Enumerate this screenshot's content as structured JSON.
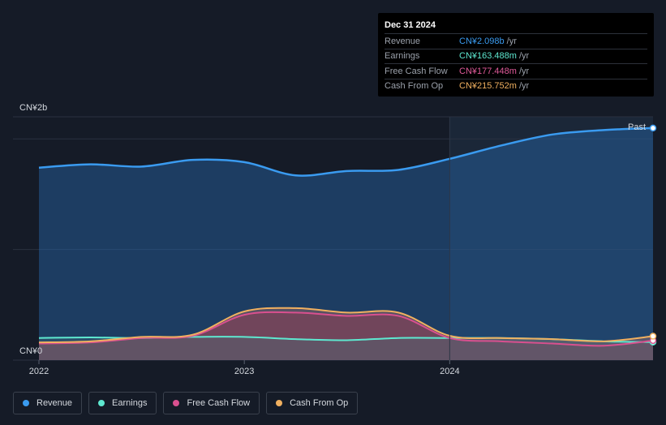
{
  "tooltip": {
    "date": "Dec 31 2024",
    "rows": [
      {
        "label": "Revenue",
        "value": "CN¥2.098b",
        "unit": "/yr",
        "color": "#3a9bf0"
      },
      {
        "label": "Earnings",
        "value": "CN¥163.488m",
        "unit": "/yr",
        "color": "#5ee8d0"
      },
      {
        "label": "Free Cash Flow",
        "value": "CN¥177.448m",
        "unit": "/yr",
        "color": "#e05a9a"
      },
      {
        "label": "Cash From Op",
        "value": "CN¥215.752m",
        "unit": "/yr",
        "color": "#f0b060"
      }
    ]
  },
  "legend": [
    {
      "label": "Revenue",
      "color": "#3a9bf0"
    },
    {
      "label": "Earnings",
      "color": "#5ee8d0"
    },
    {
      "label": "Free Cash Flow",
      "color": "#d9508f"
    },
    {
      "label": "Cash From Op",
      "color": "#f0b060"
    }
  ],
  "chart_data": {
    "type": "area",
    "y_max_label": "CN¥2b",
    "y_min_label": "CN¥0",
    "past_label": "Past",
    "ylim": [
      0,
      2.2
    ],
    "xlim": [
      2022.0,
      2024.99
    ],
    "x_ticks": [
      {
        "value": 2022.0,
        "label": "2022"
      },
      {
        "value": 2023.0,
        "label": "2023"
      },
      {
        "value": 2024.0,
        "label": "2024"
      }
    ],
    "highlight_from": 2024.0,
    "series": [
      {
        "name": "Revenue",
        "color": "#3a9bf0",
        "points": [
          [
            2022.0,
            1.74
          ],
          [
            2022.25,
            1.77
          ],
          [
            2022.5,
            1.75
          ],
          [
            2022.75,
            1.81
          ],
          [
            2023.0,
            1.79
          ],
          [
            2023.25,
            1.67
          ],
          [
            2023.5,
            1.71
          ],
          [
            2023.75,
            1.72
          ],
          [
            2024.0,
            1.82
          ],
          [
            2024.25,
            1.94
          ],
          [
            2024.5,
            2.04
          ],
          [
            2024.75,
            2.08
          ],
          [
            2024.99,
            2.098
          ]
        ]
      },
      {
        "name": "Earnings",
        "color": "#5ee8d0",
        "points": [
          [
            2022.0,
            0.2
          ],
          [
            2022.25,
            0.205
          ],
          [
            2022.5,
            0.2
          ],
          [
            2022.75,
            0.21
          ],
          [
            2023.0,
            0.21
          ],
          [
            2023.25,
            0.19
          ],
          [
            2023.5,
            0.18
          ],
          [
            2023.75,
            0.2
          ],
          [
            2024.0,
            0.2
          ],
          [
            2024.25,
            0.2
          ],
          [
            2024.5,
            0.19
          ],
          [
            2024.75,
            0.17
          ],
          [
            2024.99,
            0.163
          ]
        ]
      },
      {
        "name": "Free Cash Flow",
        "color": "#d9508f",
        "points": [
          [
            2022.0,
            0.15
          ],
          [
            2022.25,
            0.16
          ],
          [
            2022.5,
            0.2
          ],
          [
            2022.75,
            0.22
          ],
          [
            2023.0,
            0.41
          ],
          [
            2023.25,
            0.43
          ],
          [
            2023.5,
            0.4
          ],
          [
            2023.75,
            0.4
          ],
          [
            2024.0,
            0.2
          ],
          [
            2024.25,
            0.17
          ],
          [
            2024.5,
            0.15
          ],
          [
            2024.75,
            0.13
          ],
          [
            2024.99,
            0.177
          ]
        ]
      },
      {
        "name": "Cash From Op",
        "color": "#f0b060",
        "points": [
          [
            2022.0,
            0.16
          ],
          [
            2022.25,
            0.17
          ],
          [
            2022.5,
            0.21
          ],
          [
            2022.75,
            0.23
          ],
          [
            2023.0,
            0.44
          ],
          [
            2023.25,
            0.47
          ],
          [
            2023.5,
            0.43
          ],
          [
            2023.75,
            0.43
          ],
          [
            2024.0,
            0.22
          ],
          [
            2024.25,
            0.2
          ],
          [
            2024.5,
            0.19
          ],
          [
            2024.75,
            0.17
          ],
          [
            2024.99,
            0.216
          ]
        ]
      }
    ]
  }
}
